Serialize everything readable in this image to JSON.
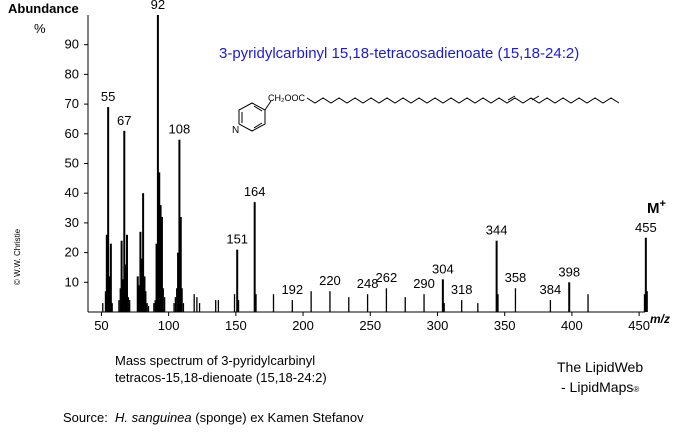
{
  "chart_data": {
    "type": "bar",
    "title": "3-pyridylcarbinyl 15,18-tetracosadienoate (15,18-24:2)",
    "ylabel_line1": "Abundance",
    "ylabel_line2": "%",
    "xlabel": "m/z",
    "xlim": [
      40,
      470
    ],
    "ylim": [
      0,
      100
    ],
    "x_ticks": [
      50,
      100,
      150,
      200,
      250,
      300,
      350,
      400,
      450
    ],
    "y_ticks": [
      10,
      20,
      30,
      40,
      50,
      60,
      70,
      80,
      90
    ],
    "molecular_ion": {
      "label": "M",
      "superscript": "+",
      "mz": 455
    },
    "peaks": [
      {
        "mz": 51,
        "abundance": 3
      },
      {
        "mz": 53,
        "abundance": 7
      },
      {
        "mz": 54,
        "abundance": 26
      },
      {
        "mz": 55,
        "abundance": 69
      },
      {
        "mz": 56,
        "abundance": 12
      },
      {
        "mz": 57,
        "abundance": 23
      },
      {
        "mz": 58,
        "abundance": 3
      },
      {
        "mz": 63,
        "abundance": 4
      },
      {
        "mz": 64,
        "abundance": 8
      },
      {
        "mz": 65,
        "abundance": 24
      },
      {
        "mz": 66,
        "abundance": 11
      },
      {
        "mz": 67,
        "abundance": 61
      },
      {
        "mz": 68,
        "abundance": 16
      },
      {
        "mz": 69,
        "abundance": 26
      },
      {
        "mz": 70,
        "abundance": 5
      },
      {
        "mz": 71,
        "abundance": 4
      },
      {
        "mz": 77,
        "abundance": 12
      },
      {
        "mz": 78,
        "abundance": 9
      },
      {
        "mz": 79,
        "abundance": 27
      },
      {
        "mz": 80,
        "abundance": 18
      },
      {
        "mz": 81,
        "abundance": 40
      },
      {
        "mz": 82,
        "abundance": 12
      },
      {
        "mz": 83,
        "abundance": 7
      },
      {
        "mz": 84,
        "abundance": 3
      },
      {
        "mz": 85,
        "abundance": 2
      },
      {
        "mz": 89,
        "abundance": 3
      },
      {
        "mz": 90,
        "abundance": 4
      },
      {
        "mz": 91,
        "abundance": 23
      },
      {
        "mz": 92,
        "abundance": 100
      },
      {
        "mz": 93,
        "abundance": 47
      },
      {
        "mz": 94,
        "abundance": 36
      },
      {
        "mz": 95,
        "abundance": 32
      },
      {
        "mz": 96,
        "abundance": 8
      },
      {
        "mz": 97,
        "abundance": 5
      },
      {
        "mz": 104,
        "abundance": 3
      },
      {
        "mz": 105,
        "abundance": 5
      },
      {
        "mz": 106,
        "abundance": 8
      },
      {
        "mz": 107,
        "abundance": 20
      },
      {
        "mz": 108,
        "abundance": 58
      },
      {
        "mz": 109,
        "abundance": 32
      },
      {
        "mz": 110,
        "abundance": 8
      },
      {
        "mz": 111,
        "abundance": 3
      },
      {
        "mz": 119,
        "abundance": 6
      },
      {
        "mz": 121,
        "abundance": 5
      },
      {
        "mz": 123,
        "abundance": 3
      },
      {
        "mz": 135,
        "abundance": 4
      },
      {
        "mz": 137,
        "abundance": 4
      },
      {
        "mz": 149,
        "abundance": 6
      },
      {
        "mz": 151,
        "abundance": 21
      },
      {
        "mz": 152,
        "abundance": 4
      },
      {
        "mz": 164,
        "abundance": 37
      },
      {
        "mz": 165,
        "abundance": 6
      },
      {
        "mz": 178,
        "abundance": 6
      },
      {
        "mz": 192,
        "abundance": 4
      },
      {
        "mz": 206,
        "abundance": 7
      },
      {
        "mz": 220,
        "abundance": 7
      },
      {
        "mz": 234,
        "abundance": 5
      },
      {
        "mz": 248,
        "abundance": 6
      },
      {
        "mz": 262,
        "abundance": 8
      },
      {
        "mz": 276,
        "abundance": 5
      },
      {
        "mz": 290,
        "abundance": 6
      },
      {
        "mz": 304,
        "abundance": 11
      },
      {
        "mz": 305,
        "abundance": 3
      },
      {
        "mz": 318,
        "abundance": 4
      },
      {
        "mz": 330,
        "abundance": 3
      },
      {
        "mz": 344,
        "abundance": 24
      },
      {
        "mz": 345,
        "abundance": 6
      },
      {
        "mz": 358,
        "abundance": 8
      },
      {
        "mz": 384,
        "abundance": 4
      },
      {
        "mz": 398,
        "abundance": 10
      },
      {
        "mz": 412,
        "abundance": 6
      },
      {
        "mz": 454,
        "abundance": 6
      },
      {
        "mz": 455,
        "abundance": 25
      },
      {
        "mz": 456,
        "abundance": 7
      }
    ],
    "peak_labels": [
      {
        "mz": 55,
        "text": "55"
      },
      {
        "mz": 67,
        "text": "67"
      },
      {
        "mz": 92,
        "text": "92"
      },
      {
        "mz": 108,
        "text": "108"
      },
      {
        "mz": 151,
        "text": "151"
      },
      {
        "mz": 164,
        "text": "164"
      },
      {
        "mz": 192,
        "text": "192"
      },
      {
        "mz": 220,
        "text": "220"
      },
      {
        "mz": 248,
        "text": "248"
      },
      {
        "mz": 262,
        "text": "262"
      },
      {
        "mz": 290,
        "text": "290"
      },
      {
        "mz": 304,
        "text": "304"
      },
      {
        "mz": 318,
        "text": "318"
      },
      {
        "mz": 344,
        "text": "344"
      },
      {
        "mz": 358,
        "text": "358"
      },
      {
        "mz": 384,
        "text": "384"
      },
      {
        "mz": 398,
        "text": "398"
      },
      {
        "mz": 455,
        "text": "455"
      }
    ],
    "title_color": "#1a1adc",
    "bar_color": "#000000",
    "grid": false
  },
  "structure": {
    "substituent_label": "CH₂OOC",
    "ring_atom_label": "N"
  },
  "copyright": "© W.W. Christie",
  "caption_line1": "Mass spectrum of 3-pyridylcarbinyl",
  "caption_line2": "tetracos-15,18-dienoate (15,18-24:2)",
  "brand_line1": "The LipidWeb",
  "brand_line2": "- LipidMaps",
  "brand_mark": "®",
  "source_prefix": "Source:  ",
  "source_species": "H. sanguinea",
  "source_suffix": " (sponge) ex Kamen Stefanov"
}
